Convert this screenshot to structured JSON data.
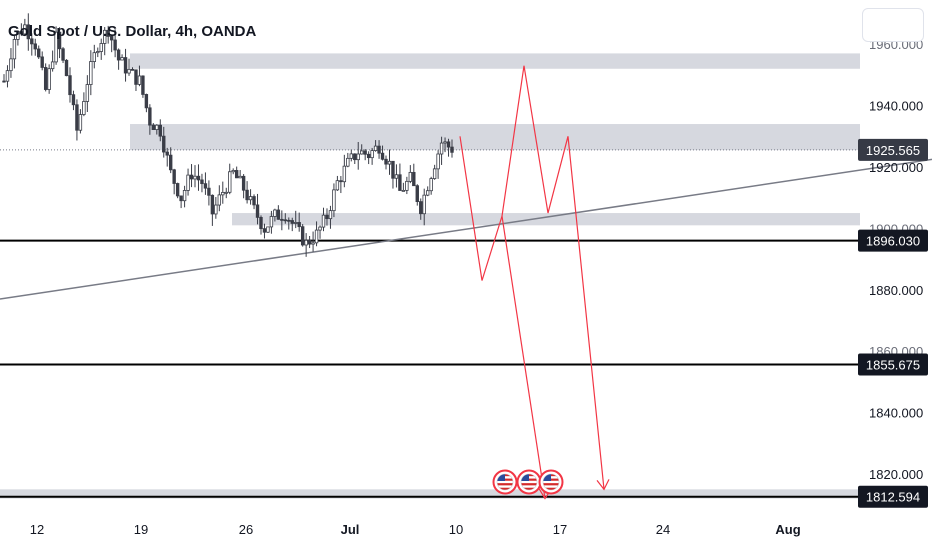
{
  "header": {
    "title": "Gold Spot / U.S. Dollar, 4h, OANDA"
  },
  "price_axis": {
    "ticks": [
      "1960.000",
      "1940.000",
      "1920.000",
      "1900.000",
      "1880.000",
      "1860.000",
      "1840.000",
      "1820.000"
    ],
    "current_price": "1925.565",
    "level_tags": [
      "1896.030",
      "1855.675",
      "1812.594"
    ]
  },
  "time_axis": {
    "labels": [
      "12",
      "19",
      "26",
      "Jul",
      "10",
      "17",
      "24",
      "Aug"
    ]
  },
  "colors": {
    "zone_fill": "#d1d4dc",
    "level_line": "#000000",
    "trend_line": "#787b86",
    "projection": "#f23645",
    "candle": "#3a3d47",
    "tag_background": "#131722"
  },
  "events": [
    "us-flag-icon",
    "us-flag-icon",
    "us-flag-icon"
  ],
  "chart_data": {
    "type": "candlestick",
    "title": "Gold Spot / U.S. Dollar, 4h, OANDA",
    "symbol": "XAUUSD",
    "timeframe": "4h",
    "source": "OANDA",
    "ylim": [
      1805,
      1972
    ],
    "x_labels": [
      "12",
      "19",
      "26",
      "Jul",
      "10",
      "17",
      "24",
      "Aug"
    ],
    "current_price": 1925.565,
    "horizontal_levels": [
      1896.03,
      1855.675,
      1812.594
    ],
    "zones": [
      {
        "from": 1952,
        "to": 1957
      },
      {
        "from": 1925.5,
        "to": 1934
      },
      {
        "from": 1901,
        "to": 1905
      },
      {
        "from": 1812,
        "to": 1815
      }
    ],
    "trendline": {
      "from": 1877,
      "to": 1922.5
    },
    "projection_path": [
      1930,
      1883,
      1904,
      1953,
      1905,
      1930,
      1815
    ],
    "projection_path_2": [
      1904,
      1812
    ],
    "close_path": [
      1948,
      1962,
      1966,
      1960,
      1945,
      1962,
      1950,
      1932,
      1948,
      1960,
      1965,
      1955,
      1951,
      1948,
      1935,
      1932,
      1918,
      1910,
      1918,
      1915,
      1905,
      1912,
      1918,
      1913,
      1906,
      1900,
      1904,
      1905,
      1900,
      1895,
      1898,
      1904,
      1915,
      1921,
      1925,
      1924,
      1927,
      1921,
      1912,
      1916,
      1907,
      1918,
      1928,
      1926
    ]
  }
}
